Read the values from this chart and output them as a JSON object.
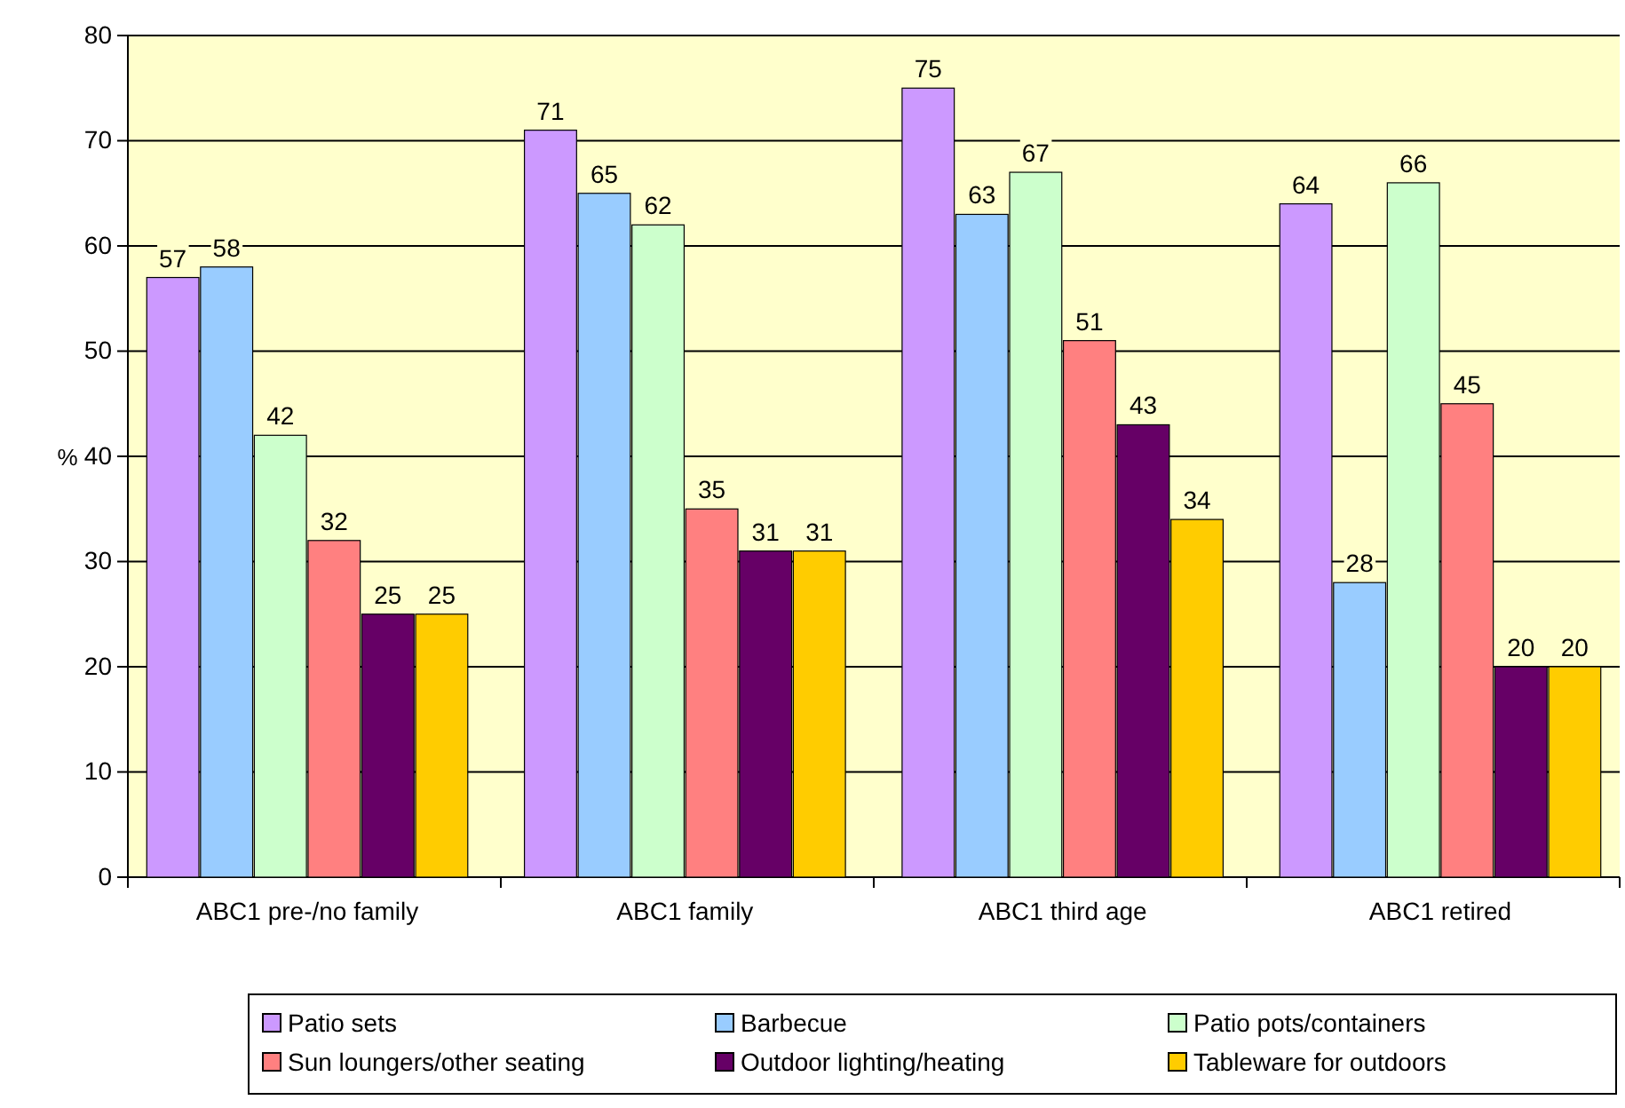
{
  "chart_data": {
    "type": "bar",
    "ylabel": "%",
    "categories": [
      "ABC1 pre-/no family",
      "ABC1 family",
      "ABC1 third age",
      "ABC1 retired"
    ],
    "series": [
      {
        "name": "Patio sets",
        "color": "#cc99ff",
        "values": [
          57,
          71,
          75,
          64
        ]
      },
      {
        "name": "Barbecue",
        "color": "#99ccff",
        "values": [
          58,
          65,
          63,
          28
        ]
      },
      {
        "name": "Patio pots/containers",
        "color": "#ccffcc",
        "values": [
          42,
          62,
          67,
          66
        ]
      },
      {
        "name": "Sun loungers/other seating",
        "color": "#ff8080",
        "values": [
          32,
          35,
          51,
          45
        ]
      },
      {
        "name": "Outdoor lighting/heating",
        "color": "#660066",
        "values": [
          25,
          31,
          43,
          20
        ]
      },
      {
        "name": "Tableware for outdoors",
        "color": "#ffcc00",
        "values": [
          25,
          31,
          34,
          20
        ]
      }
    ],
    "ylim": [
      0,
      80
    ],
    "yticks": [
      0,
      10,
      20,
      30,
      40,
      50,
      60,
      70,
      80
    ],
    "grid": "y",
    "data_labels": true,
    "legend": "bottom"
  }
}
